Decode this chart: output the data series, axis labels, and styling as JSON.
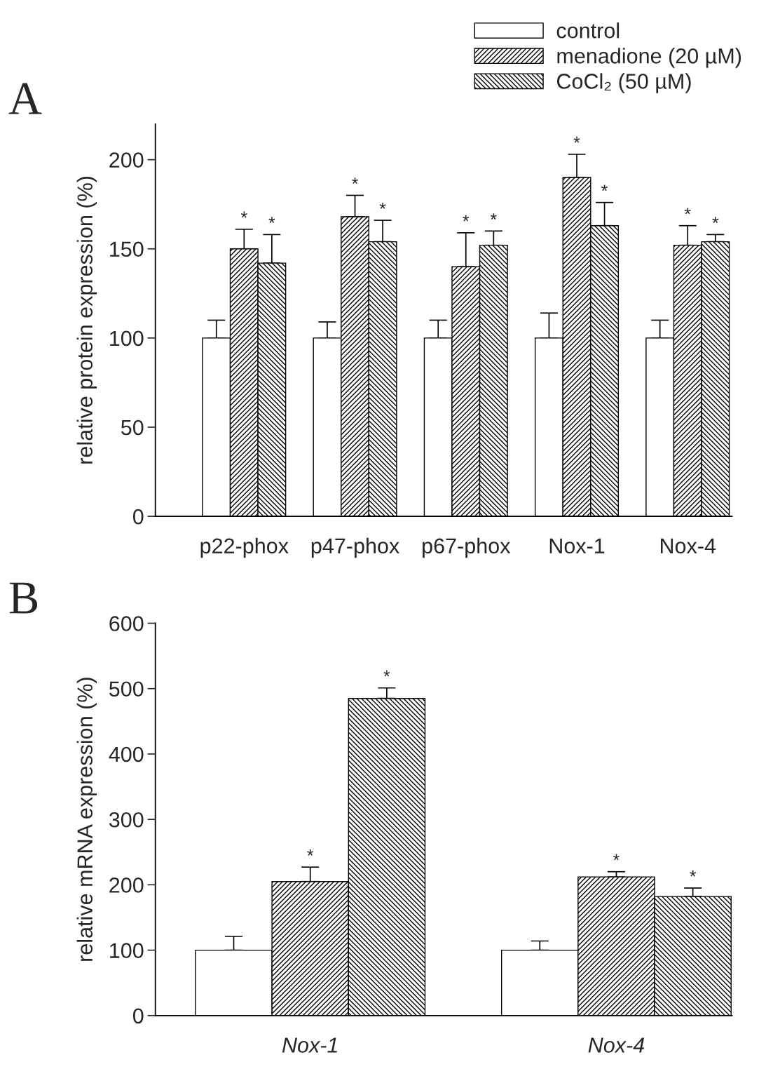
{
  "chart_data": [
    {
      "type": "bar",
      "title": "A",
      "ylabel": "relative protein expression (%)",
      "categories": [
        "p22-phox",
        "p47-phox",
        "p67-phox",
        "Nox-1",
        "Nox-4"
      ],
      "ylim": [
        0,
        220
      ],
      "yticks": [
        0,
        50,
        100,
        150,
        200
      ],
      "grid": false,
      "legend": "top right",
      "series": [
        {
          "name": "control",
          "color": "#ffffff",
          "values": [
            100,
            100,
            100,
            100,
            100
          ],
          "errors": [
            [
              100,
              110
            ],
            [
              100,
              109
            ],
            [
              100,
              110
            ],
            [
              100,
              114
            ],
            [
              100,
              110
            ]
          ]
        },
        {
          "name": "menadione (20 µM)",
          "color": "#000000",
          "values": [
            150,
            168,
            140,
            190,
            152
          ],
          "errors": [
            [
              150,
              161
            ],
            [
              168,
              180
            ],
            [
              140,
              159
            ],
            [
              190,
              203
            ],
            [
              152,
              163
            ]
          ],
          "value_labels": [
            "*",
            "*",
            "*",
            "*",
            "*"
          ]
        },
        {
          "name": "CoCl₂ (50 µM)",
          "color": "#000000",
          "values": [
            142,
            154,
            152,
            163,
            154
          ],
          "errors": [
            [
              142,
              158
            ],
            [
              154,
              166
            ],
            [
              152,
              160
            ],
            [
              163,
              176
            ],
            [
              154,
              158
            ]
          ],
          "value_labels": [
            "*",
            "*",
            "*",
            "*",
            "*"
          ]
        }
      ]
    },
    {
      "type": "bar",
      "title": "B",
      "ylabel": "relative mRNA expression (%)",
      "categories": [
        "Nox-1",
        "Nox-4"
      ],
      "ylim": [
        0,
        600
      ],
      "yticks": [
        0,
        100,
        200,
        300,
        400,
        500,
        600
      ],
      "grid": false,
      "series": [
        {
          "color": "#ffffff",
          "values": [
            100,
            100
          ],
          "errors": [
            [
              100,
              121
            ],
            [
              100,
              114
            ]
          ]
        },
        {
          "color": "#000000",
          "values": [
            205,
            212
          ],
          "errors": [
            [
              205,
              227
            ],
            [
              212,
              220
            ]
          ],
          "value_labels": [
            "*",
            "*"
          ]
        },
        {
          "color": "#000000",
          "values": [
            485,
            182
          ],
          "errors": [
            [
              485,
              501
            ],
            [
              182,
              195
            ]
          ],
          "value_labels": [
            "*",
            "*"
          ]
        }
      ]
    }
  ]
}
